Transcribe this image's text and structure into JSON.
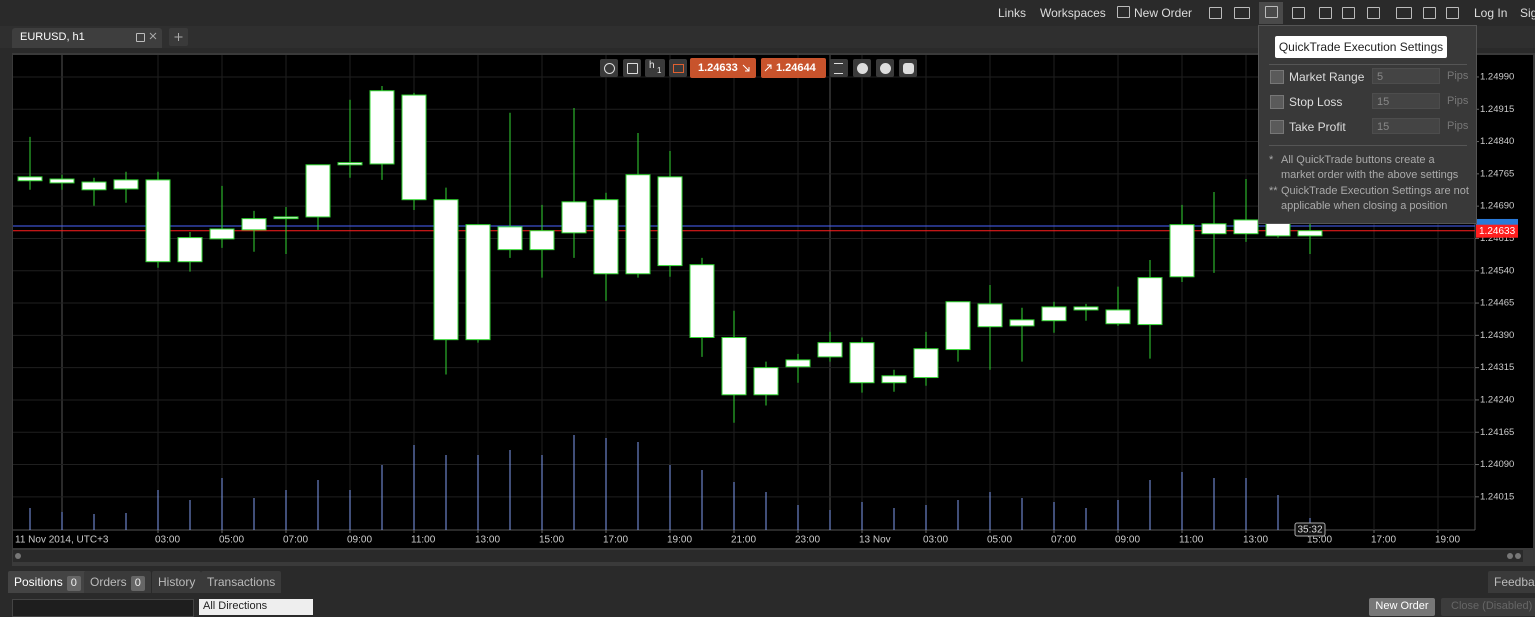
{
  "topbar": {
    "links": "Links",
    "workspaces": "Workspaces",
    "new_order": "New Order",
    "login": "Log In",
    "signup": "Sign Up"
  },
  "tab": {
    "title": "EURUSD, h1"
  },
  "toolbar": {
    "period_unit": "h",
    "period_value": 1
  },
  "chart_data": {
    "type": "candlestick",
    "x_start_label": "11 Nov 2014, UTC+3",
    "countdown": "35:32",
    "bid": 1.24633,
    "ask": 1.24644,
    "bid_color": "#ff1e1e",
    "ask_color": "#4a63ff",
    "wick_color": "#33d633",
    "body_color": "#ffffff",
    "volume_color": "#7f9cf0",
    "grid": true,
    "categories": [
      null,
      null,
      null,
      null,
      "03:00",
      null,
      "05:00",
      null,
      "07:00",
      null,
      "09:00",
      null,
      "11:00",
      null,
      "13:00",
      null,
      "15:00",
      null,
      "17:00",
      null,
      "19:00",
      null,
      "21:00",
      null,
      "23:00",
      null,
      "13 Nov",
      null,
      "03:00",
      null,
      "05:00",
      null,
      "07:00",
      null,
      "09:00",
      null,
      "11:00",
      null,
      "13:00",
      null,
      "15:00",
      null,
      "17:00",
      null,
      "19:00"
    ],
    "open": [
      1.24758,
      1.24753,
      1.24746,
      1.2473,
      1.24751,
      1.24561,
      1.24614,
      1.24635,
      1.24661,
      1.24665,
      1.24786,
      1.24788,
      1.24948,
      1.24705,
      1.2438,
      1.24642,
      1.24589,
      1.24628,
      1.24705,
      1.24533,
      1.24758,
      1.24554,
      1.24385,
      1.24252,
      1.24317,
      1.2434,
      1.24373,
      1.2428,
      1.24292,
      1.24357,
      1.24463,
      1.24412,
      1.24424,
      1.24456,
      1.24449,
      1.24415,
      1.24526,
      1.24626,
      1.24626,
      1.24651,
      1.24621,
      null,
      null,
      null,
      null
    ],
    "high": [
      1.24851,
      1.24763,
      1.24756,
      1.2477,
      1.2477,
      1.2463,
      1.24737,
      1.24679,
      1.24688,
      1.24786,
      1.24937,
      1.24969,
      1.24953,
      1.24733,
      1.24647,
      1.24907,
      1.24693,
      1.24918,
      1.24721,
      1.2486,
      1.24818,
      1.2457,
      1.24447,
      1.24329,
      1.24347,
      1.24398,
      1.24385,
      1.2431,
      1.24398,
      1.24468,
      1.24507,
      1.24454,
      1.24468,
      1.24463,
      1.24503,
      1.24565,
      1.24693,
      1.24723,
      1.24753,
      1.24686,
      1.24677,
      null,
      null,
      null,
      null
    ],
    "low": [
      1.24728,
      1.24728,
      1.24691,
      1.24698,
      1.24547,
      1.24538,
      1.24593,
      1.24584,
      1.24579,
      1.24635,
      1.24756,
      1.24751,
      1.24681,
      1.24299,
      1.24373,
      1.2457,
      1.24524,
      1.2457,
      1.2447,
      1.24524,
      1.24526,
      1.2434,
      1.24187,
      1.24227,
      1.2428,
      1.24329,
      1.24257,
      1.24259,
      1.24273,
      1.24329,
      1.2431,
      1.24329,
      1.24396,
      1.24424,
      1.24412,
      1.24336,
      1.24514,
      1.24535,
      1.24607,
      1.24617,
      1.24579,
      null,
      null,
      null,
      null
    ],
    "close": [
      1.24749,
      1.24744,
      1.24728,
      1.24751,
      1.24561,
      1.24617,
      1.24637,
      1.24661,
      1.24665,
      1.24786,
      1.24791,
      1.24958,
      1.24705,
      1.2438,
      1.24647,
      1.24589,
      1.24633,
      1.247,
      1.24533,
      1.24763,
      1.24552,
      1.24385,
      1.24252,
      1.24315,
      1.24333,
      1.24373,
      1.2428,
      1.24296,
      1.24359,
      1.24468,
      1.2441,
      1.24426,
      1.24456,
      1.24449,
      1.24417,
      1.24524,
      1.24647,
      1.24649,
      1.24658,
      1.24621,
      1.24633,
      null,
      null,
      null,
      null
    ],
    "volume": [
      22,
      18,
      16,
      17,
      40,
      30,
      52,
      32,
      40,
      50,
      40,
      65,
      85,
      75,
      75,
      80,
      75,
      95,
      92,
      88,
      65,
      60,
      48,
      38,
      25,
      20,
      28,
      22,
      25,
      30,
      38,
      32,
      28,
      22,
      30,
      50,
      58,
      52,
      52,
      35,
      12,
      null,
      null,
      null,
      null
    ],
    "ylim": [
      1.23938,
      1.25041
    ],
    "yticks": [
      1.24015,
      {
        "value": 1.2409,
        "label": "1.24090"
      },
      1.24165,
      {
        "value": 1.2424,
        "label": "1.24240"
      },
      1.24315,
      {
        "value": 1.2439,
        "label": "1.24390"
      },
      1.24465,
      {
        "value": 1.2454,
        "label": "1.24540"
      },
      1.24615,
      {
        "value": 1.2469,
        "label": "1.24690"
      },
      1.24765,
      {
        "value": 1.2484,
        "label": "1.24840"
      },
      1.24915,
      {
        "value": 1.2499,
        "label": "1.24990"
      }
    ]
  },
  "popup": {
    "title": "QuickTrade Execution Settings",
    "rows": [
      {
        "label": "Market Range",
        "value": 5,
        "unit": "Pips"
      },
      {
        "label": "Stop Loss",
        "value": 15,
        "unit": "Pips"
      },
      {
        "label": "Take Profit",
        "value": 15,
        "unit": "Pips"
      }
    ],
    "notes": [
      {
        "marker": "*",
        "text": "All QuickTrade buttons create a market order with the above settings"
      },
      {
        "marker": "**",
        "text": "QuickTrade Execution Settings are not applicable when closing a position"
      }
    ]
  },
  "bottom": {
    "tabs": [
      {
        "label": "Positions",
        "count": 0
      },
      {
        "label": "Orders",
        "count": 0
      },
      {
        "label": "History"
      },
      {
        "label": "Transactions"
      }
    ],
    "feedback": "Feedback",
    "filter": "All Directions",
    "new_order": "New Order",
    "close": "Close (Disabled)"
  }
}
